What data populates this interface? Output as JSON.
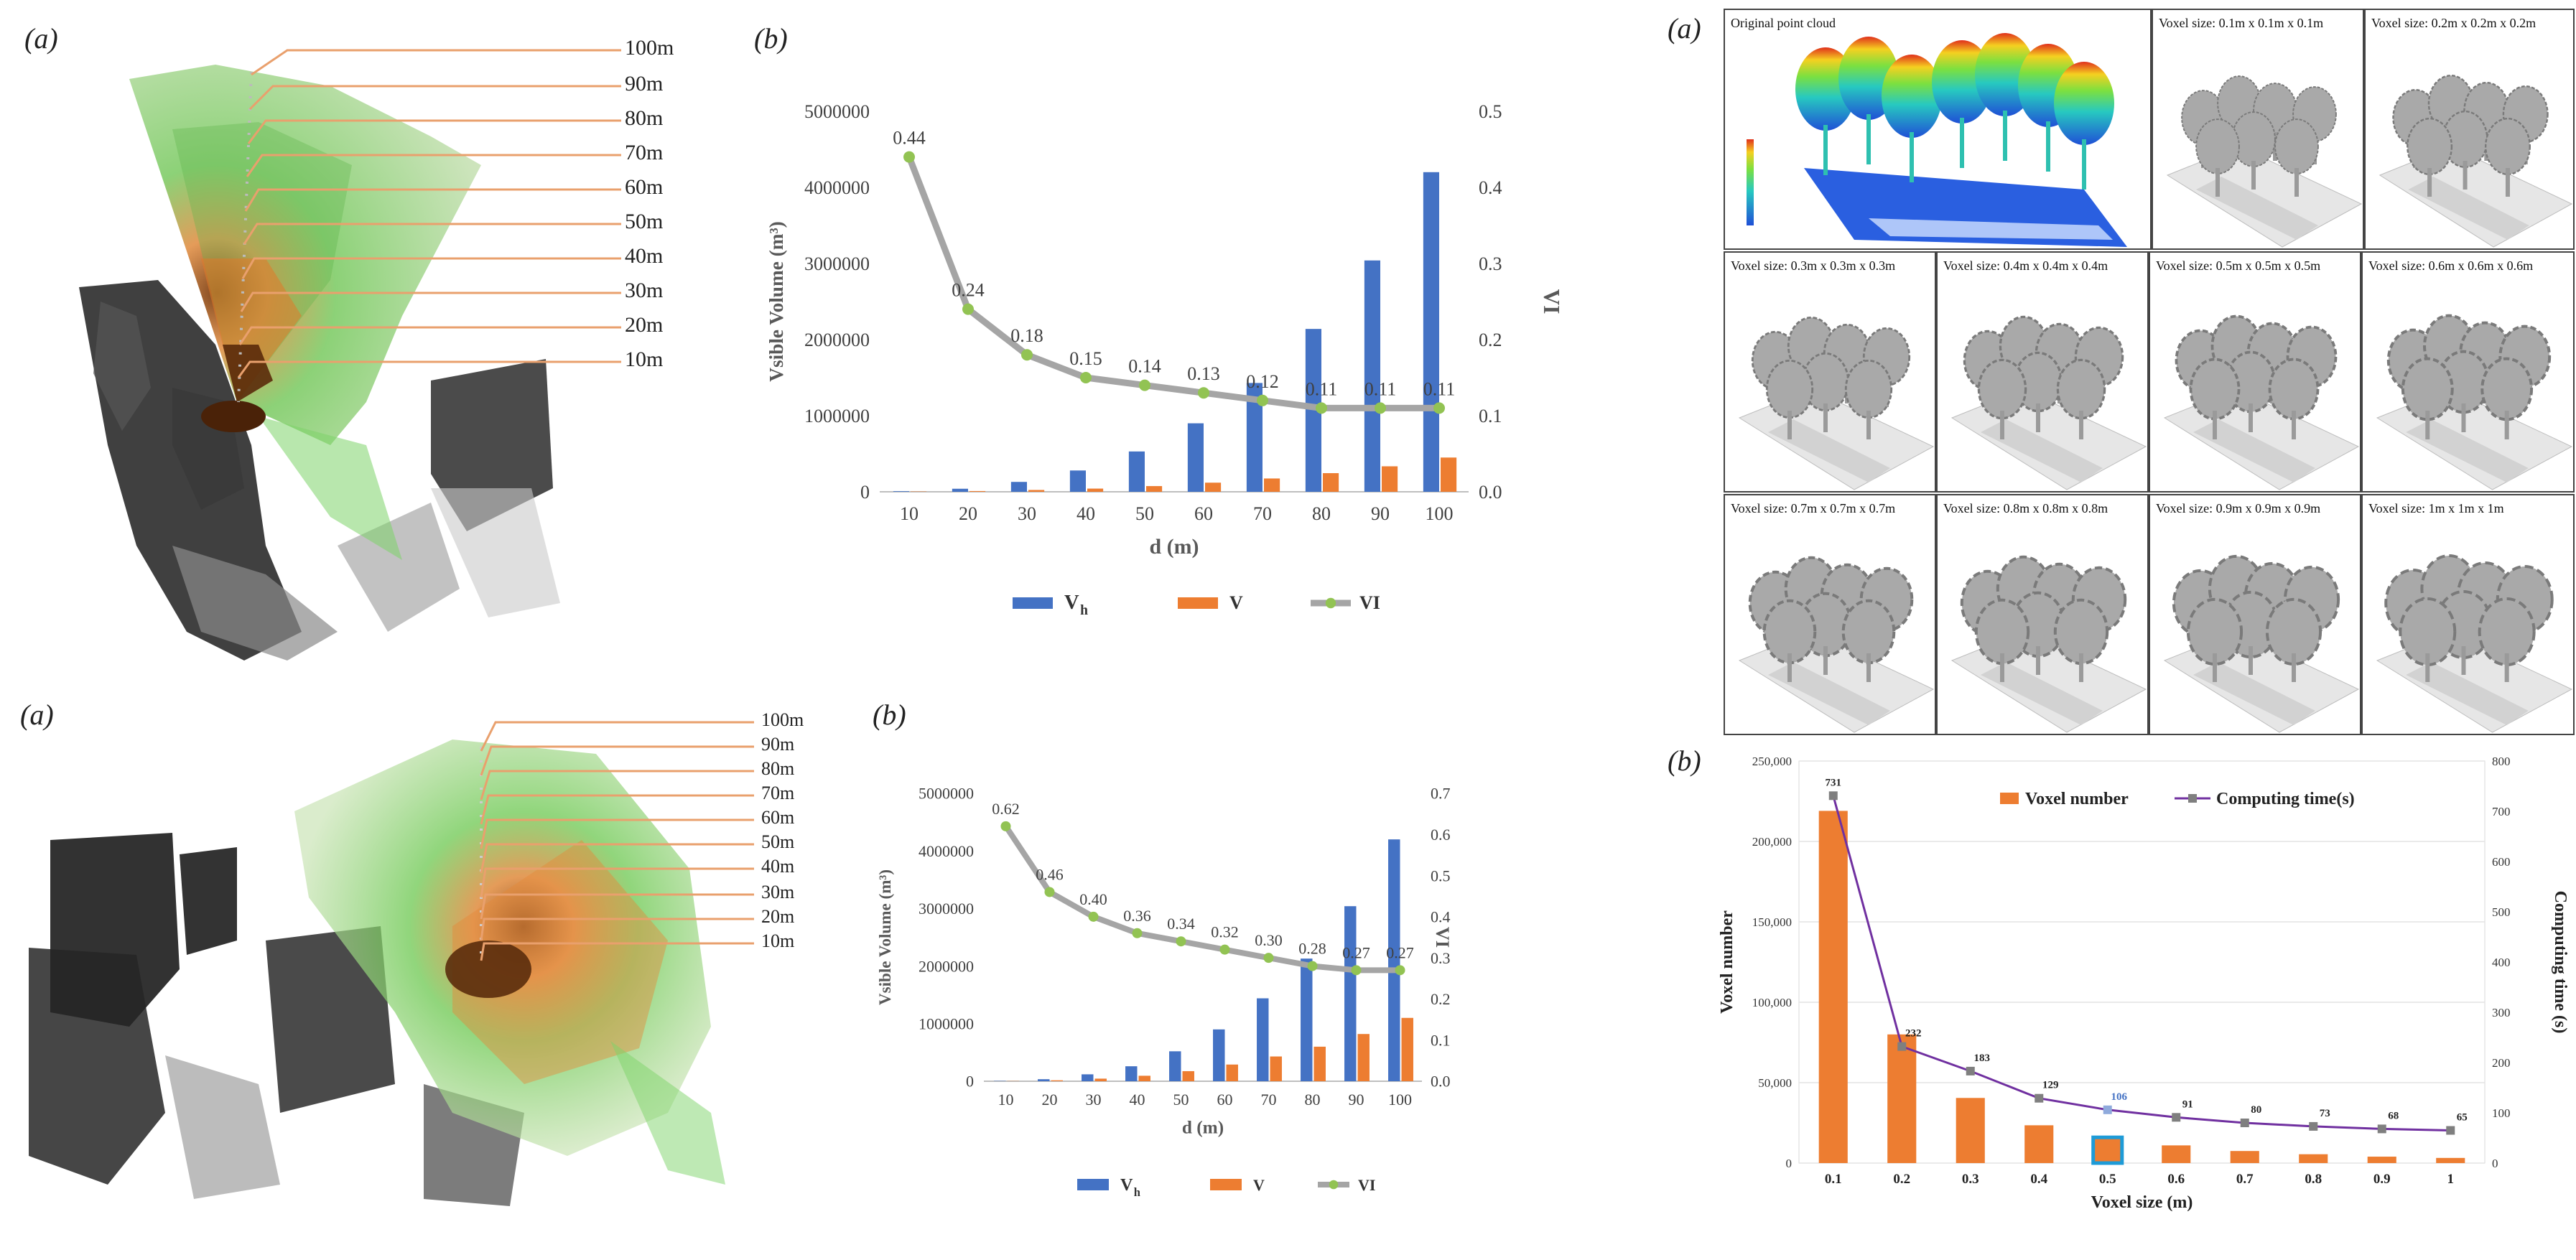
{
  "panels": {
    "top_left_label": "(a)",
    "top_mid_label": "(b)",
    "bottom_left_label": "(a)",
    "bottom_mid_label": "(b)",
    "right_top_label": "(a)",
    "right_bottom_label": "(b)"
  },
  "distance_labels_top": [
    "100m",
    "90m",
    "80m",
    "70m",
    "60m",
    "50m",
    "40m",
    "30m",
    "20m",
    "10m"
  ],
  "distance_labels_bottom": [
    "100m",
    "90m",
    "80m",
    "70m",
    "60m",
    "50m",
    "40m",
    "30m",
    "20m",
    "10m"
  ],
  "voxel_grid": [
    {
      "caption": "Original point cloud",
      "kind": "color"
    },
    {
      "caption": "Voxel size: 0.1m x 0.1m x 0.1m",
      "kind": "gray"
    },
    {
      "caption": "Voxel size: 0.2m x 0.2m x 0.2m",
      "kind": "gray"
    },
    {
      "caption": "Voxel size: 0.3m x 0.3m x 0.3m",
      "kind": "gray"
    },
    {
      "caption": "Voxel size: 0.4m x 0.4m x 0.4m",
      "kind": "gray"
    },
    {
      "caption": "Voxel size: 0.5m x 0.5m x 0.5m",
      "kind": "gray"
    },
    {
      "caption": "Voxel size: 0.6m x 0.6m x 0.6m",
      "kind": "gray"
    },
    {
      "caption": "Voxel size: 0.7m x 0.7m x 0.7m",
      "kind": "gray"
    },
    {
      "caption": "Voxel size: 0.8m x 0.8m x 0.8m",
      "kind": "gray"
    },
    {
      "caption": "Voxel size: 0.9m x 0.9m x 0.9m",
      "kind": "gray"
    },
    {
      "caption": "Voxel size: 1m x 1m x 1m",
      "kind": "gray"
    }
  ],
  "colors": {
    "vh": "#4472C4",
    "v": "#ED7D31",
    "vi_line": "#A5A5A5",
    "vi_marker": "#92C353",
    "voxel_bar": "#ED7D31",
    "time_line": "#7030A0",
    "highlight": "#1E9BD7"
  },
  "chart_data": [
    {
      "id": "top",
      "type": "bar",
      "categories": [
        "10",
        "20",
        "30",
        "40",
        "50",
        "60",
        "70",
        "80",
        "90",
        "100"
      ],
      "series": [
        {
          "name": "V_h",
          "axis": "left",
          "values": [
            8000,
            40000,
            130000,
            280000,
            530000,
            900000,
            1430000,
            2140000,
            3040000,
            4200000
          ]
        },
        {
          "name": "V",
          "axis": "left",
          "values": [
            4000,
            10000,
            24000,
            42000,
            75000,
            120000,
            175000,
            245000,
            335000,
            450000
          ]
        },
        {
          "name": "VI",
          "type": "line",
          "axis": "right",
          "values": [
            0.44,
            0.24,
            0.18,
            0.15,
            0.14,
            0.13,
            0.12,
            0.11,
            0.11,
            0.11
          ]
        }
      ],
      "data_labels": [
        "0.44",
        "0.24",
        "0.18",
        "0.15",
        "0.14",
        "0.13",
        "0.12",
        "0.11",
        "0.11",
        "0.11"
      ],
      "xlabel": "d (m)",
      "ylabel": "Vsible Volume (m³)",
      "y2label": "VI",
      "ylim": [
        0,
        5000000
      ],
      "y2lim": [
        0,
        0.5
      ],
      "yticks": [
        "0",
        "1000000",
        "2000000",
        "3000000",
        "4000000",
        "5000000"
      ],
      "y2ticks": [
        "0.0",
        "0.1",
        "0.2",
        "0.3",
        "0.4",
        "0.5"
      ],
      "legend": [
        "V",
        "V",
        "VI"
      ],
      "legend_sub": [
        "h",
        "",
        ""
      ],
      "legend_position": "bottom"
    },
    {
      "id": "bottom",
      "type": "bar",
      "categories": [
        "10",
        "20",
        "30",
        "40",
        "50",
        "60",
        "70",
        "80",
        "90",
        "100"
      ],
      "series": [
        {
          "name": "V_h",
          "axis": "left",
          "values": [
            5000,
            35000,
            120000,
            260000,
            520000,
            900000,
            1440000,
            2130000,
            3040000,
            4200000
          ]
        },
        {
          "name": "V",
          "axis": "left",
          "values": [
            3000,
            16000,
            45000,
            95000,
            175000,
            290000,
            430000,
            600000,
            820000,
            1100000
          ]
        },
        {
          "name": "VI",
          "type": "line",
          "axis": "right",
          "values": [
            0.62,
            0.46,
            0.4,
            0.36,
            0.34,
            0.32,
            0.3,
            0.28,
            0.27,
            0.27
          ]
        }
      ],
      "data_labels": [
        "0.62",
        "0.46",
        "0.40",
        "0.36",
        "0.34",
        "0.32",
        "0.30",
        "0.28",
        "0.27",
        "0.27"
      ],
      "xlabel": "d (m)",
      "ylabel": "Vsible Volume (m³)",
      "y2label": "VI",
      "ylim": [
        0,
        5000000
      ],
      "y2lim": [
        0,
        0.7
      ],
      "yticks": [
        "0",
        "1000000",
        "2000000",
        "3000000",
        "4000000",
        "5000000"
      ],
      "y2ticks": [
        "0.0",
        "0.1",
        "0.2",
        "0.3",
        "0.4",
        "0.5",
        "0.6",
        "0.7"
      ],
      "legend": [
        "V",
        "V",
        "VI"
      ],
      "legend_sub": [
        "h",
        "",
        ""
      ],
      "legend_position": "bottom"
    },
    {
      "id": "voxel",
      "type": "bar",
      "categories": [
        "0.1",
        "0.2",
        "0.3",
        "0.4",
        "0.5",
        "0.6",
        "0.7",
        "0.8",
        "0.9",
        "1"
      ],
      "series": [
        {
          "name": "Voxel number",
          "axis": "left",
          "values": [
            219000,
            80000,
            40500,
            23500,
            16000,
            11000,
            7500,
            5500,
            4000,
            3200
          ]
        },
        {
          "name": "Computing time(s)",
          "type": "line",
          "axis": "right",
          "values": [
            731,
            232,
            183,
            129,
            106,
            91,
            80,
            73,
            68,
            65
          ]
        }
      ],
      "data_labels": [
        "731",
        "232",
        "183",
        "129",
        "106",
        "91",
        "80",
        "73",
        "68",
        "65"
      ],
      "highlight_index": 4,
      "xlabel": "Voxel size (m)",
      "ylabel": "Voxel number",
      "y2label": "Computing time (s)",
      "ylim": [
        0,
        250000
      ],
      "y2lim": [
        0,
        800
      ],
      "yticks": [
        "0",
        "50,000",
        "100,000",
        "150,000",
        "200,000",
        "250,000"
      ],
      "y2ticks": [
        "0",
        "100",
        "200",
        "300",
        "400",
        "500",
        "600",
        "700",
        "800"
      ],
      "legend": [
        "Voxel number",
        "Computing time(s)"
      ],
      "legend_position": "top"
    }
  ]
}
